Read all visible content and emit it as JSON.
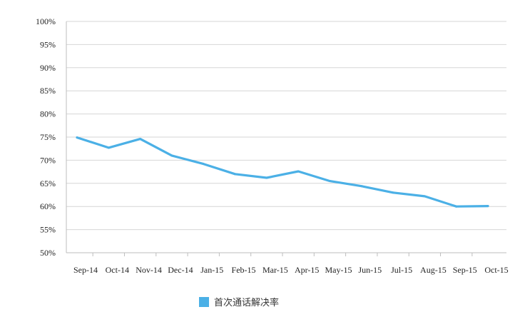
{
  "chart_data": {
    "type": "line",
    "title": "",
    "xlabel": "",
    "ylabel": "",
    "x": [
      "Sep-14",
      "Oct-14",
      "Nov-14",
      "Dec-14",
      "Jan-15",
      "Feb-15",
      "Mar-15",
      "Apr-15",
      "May-15",
      "Jun-15",
      "Jul-15",
      "Aug-15",
      "Sep-15",
      "Oct-15"
    ],
    "series": [
      {
        "name": "首次通话解决率",
        "color": "#4bb0e6",
        "values": [
          74.9,
          72.7,
          74.6,
          71.0,
          69.2,
          67.0,
          66.2,
          67.6,
          65.5,
          64.4,
          63.0,
          62.2,
          60.0,
          60.1
        ]
      }
    ],
    "ylim": [
      50,
      100
    ],
    "yticks": [
      "50%",
      "55%",
      "60%",
      "65%",
      "70%",
      "75%",
      "80%",
      "85%",
      "90%",
      "95%",
      "100%"
    ],
    "grid": true,
    "legend_position": "bottom"
  }
}
